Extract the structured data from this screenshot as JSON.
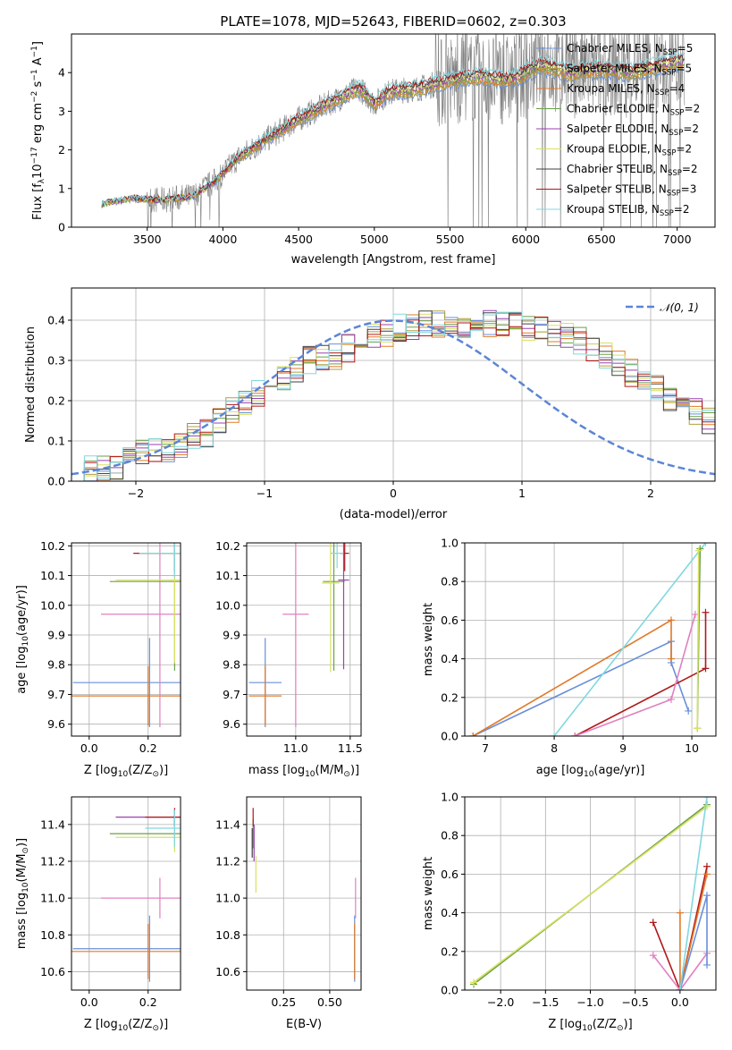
{
  "chart_data": [
    {
      "type": "line",
      "title": "PLATE=1078, MJD=52643, FIBERID=0602, z=0.303",
      "xlabel": "wavelength [Angstrom, rest frame]",
      "ylabel": "Flux [f$_\\lambda$10$^{-17}$ erg cm$^{-2}$ s$^{-1}$ A$^{-1}$]",
      "ylabel_parts": {
        "a": "Flux [f",
        "b": "λ",
        "c": "10",
        "d": "−17",
        "e": " erg cm",
        "f": "−2",
        "g": " s",
        "h": "−1",
        "i": " A",
        "j": "−1",
        "k": "]"
      },
      "xlim": [
        3000,
        7250
      ],
      "ylim": [
        0,
        5
      ],
      "xticks": [
        3500,
        4000,
        4500,
        5000,
        5500,
        6000,
        6500,
        7000
      ],
      "yticks": [
        0,
        1,
        2,
        3,
        4
      ],
      "legend_position": "top-right",
      "model_points": [
        [
          3200,
          0.6
        ],
        [
          3400,
          0.75
        ],
        [
          3600,
          0.7
        ],
        [
          3800,
          0.8
        ],
        [
          3950,
          1.2
        ],
        [
          4100,
          1.8
        ],
        [
          4300,
          2.3
        ],
        [
          4500,
          2.8
        ],
        [
          4700,
          3.2
        ],
        [
          4900,
          3.6
        ],
        [
          5000,
          3.2
        ],
        [
          5100,
          3.5
        ],
        [
          5300,
          3.6
        ],
        [
          5500,
          3.8
        ],
        [
          5700,
          3.9
        ],
        [
          5900,
          3.8
        ],
        [
          6100,
          4.2
        ],
        [
          6300,
          4.0
        ],
        [
          6500,
          4.1
        ],
        [
          6700,
          4.0
        ],
        [
          6900,
          4.2
        ],
        [
          7050,
          4.3
        ]
      ],
      "series": [
        {
          "name": "Chabrier MILES, N",
          "sub": "SSP",
          "suffix": "=5",
          "color": "#6a8fd8"
        },
        {
          "name": "Salpeter MILES, N",
          "sub": "SSP",
          "suffix": "=5",
          "color": "#b0a040"
        },
        {
          "name": "Kroupa MILES, N",
          "sub": "SSP",
          "suffix": "=4",
          "color": "#e07a2a"
        },
        {
          "name": "Chabrier ELODIE, N",
          "sub": "SSP",
          "suffix": "=2",
          "color": "#6aa04a"
        },
        {
          "name": "Salpeter ELODIE, N",
          "sub": "SSP",
          "suffix": "=2",
          "color": "#9a40b0"
        },
        {
          "name": "Kroupa ELODIE, N",
          "sub": "SSP",
          "suffix": "=2",
          "color": "#d8e060"
        },
        {
          "name": "Chabrier STELIB, N",
          "sub": "SSP",
          "suffix": "=2",
          "color": "#404040"
        },
        {
          "name": "Salpeter STELIB, N",
          "sub": "SSP",
          "suffix": "=3",
          "color": "#b01818"
        },
        {
          "name": "Kroupa STELIB, N",
          "sub": "SSP",
          "suffix": "=2",
          "color": "#80d8e0"
        }
      ]
    },
    {
      "type": "line",
      "xlabel": "(data-model)/error",
      "ylabel": "Normed distribution",
      "xlim": [
        -2.5,
        2.5
      ],
      "ylim": [
        0,
        0.48
      ],
      "xticks": [
        -2,
        -1,
        0,
        1,
        2
      ],
      "yticks": [
        0.0,
        0.1,
        0.2,
        0.3,
        0.4
      ],
      "xtick_labels": [
        "−2",
        "−1",
        "0",
        "1",
        "2"
      ],
      "ytick_labels": [
        "0.0",
        "0.1",
        "0.2",
        "0.3",
        "0.4"
      ],
      "grid": true,
      "legend": {
        "label": "𝒩(0, 1)",
        "position": "top-right",
        "color": "#5b85d6"
      },
      "bin_start": -2.5,
      "bin_width": 0.1,
      "hist_base": [
        0.03,
        0.03,
        0.03,
        0.04,
        0.05,
        0.07,
        0.08,
        0.08,
        0.09,
        0.11,
        0.12,
        0.15,
        0.18,
        0.2,
        0.22,
        0.24,
        0.26,
        0.28,
        0.3,
        0.31,
        0.31,
        0.33,
        0.35,
        0.36,
        0.37,
        0.38,
        0.38,
        0.39,
        0.39,
        0.39,
        0.39,
        0.39,
        0.39,
        0.39,
        0.39,
        0.38,
        0.38,
        0.37,
        0.36,
        0.35,
        0.33,
        0.31,
        0.29,
        0.27,
        0.25,
        0.23,
        0.21,
        0.19,
        0.17,
        0.15,
        0.13,
        0.12,
        0.1,
        0.09,
        0.08,
        0.07,
        0.06,
        0.05,
        0.04,
        0.03,
        0.03,
        0.03,
        0.02
      ]
    },
    {
      "type": "scatter",
      "xlabel_main": "Z [log",
      "xlabel_sub": "10",
      "xlabel_rest": "(Z/Z",
      "xlabel_end": ")]",
      "ylabel": "age  [log10(age/yr)]",
      "xlim": [
        -0.06,
        0.31
      ],
      "ylim": [
        9.56,
        10.21
      ],
      "xticks": [
        0.0,
        0.2
      ],
      "yticks": [
        9.6,
        9.7,
        9.8,
        9.9,
        10.0,
        10.1,
        10.2
      ],
      "xtick_labels": [
        "0.0",
        "0.2"
      ],
      "ytick_labels": [
        "9.6",
        "9.7",
        "9.8",
        "9.9",
        "10.0",
        "10.1",
        "10.2"
      ],
      "grid": true,
      "points": [
        {
          "x": 0.205,
          "y": 9.74,
          "xerr": 0.26,
          "yerr": 0.15,
          "color": "#6a8fd8"
        },
        {
          "x": 0.2,
          "y": 9.695,
          "xerr": 0.26,
          "yerr": 0.1,
          "color": "#e07a2a"
        },
        {
          "x": 0.24,
          "y": 9.97,
          "xerr": 0.2,
          "yerr": 0.38,
          "color": "#e080c0"
        },
        {
          "x": 0.29,
          "y": 10.08,
          "xerr": 0.22,
          "yerr": 0.3,
          "color": "#6aa04a"
        },
        {
          "x": 0.29,
          "y": 10.085,
          "xerr": 0.2,
          "yerr": 0.28,
          "color": "#d8e060"
        },
        {
          "x": 0.29,
          "y": 10.175,
          "xerr": 0.14,
          "yerr": 0.06,
          "color": "#b01818"
        },
        {
          "x": 0.29,
          "y": 10.175,
          "xerr": 0.12,
          "yerr": 0.08,
          "color": "#80d8e0"
        }
      ]
    },
    {
      "type": "scatter",
      "xlabel": "mass [log10(M/M⊙)]",
      "ylabel": "",
      "xlim": [
        10.55,
        11.6
      ],
      "ylim": [
        9.56,
        10.21
      ],
      "xticks": [
        10.5,
        11.0,
        11.5
      ],
      "yticks": [
        9.6,
        9.7,
        9.8,
        9.9,
        10.0,
        10.1,
        10.2
      ],
      "xtick_labels": [
        "10.5",
        "11.0",
        "11.5"
      ],
      "ytick_labels": [
        "9.6",
        "9.7",
        "9.8",
        "9.9",
        "10.0",
        "10.1",
        "10.2"
      ],
      "grid": true,
      "points": [
        {
          "x": 10.72,
          "y": 9.74,
          "xerr": 0.15,
          "yerr": 0.15,
          "color": "#6a8fd8"
        },
        {
          "x": 10.72,
          "y": 9.695,
          "xerr": 0.15,
          "yerr": 0.1,
          "color": "#e07a2a"
        },
        {
          "x": 11.0,
          "y": 9.97,
          "xerr": 0.12,
          "yerr": 0.38,
          "color": "#e080c0"
        },
        {
          "x": 11.35,
          "y": 10.08,
          "xerr": 0.1,
          "yerr": 0.3,
          "color": "#6aa04a"
        },
        {
          "x": 11.32,
          "y": 10.075,
          "xerr": 0.08,
          "yerr": 0.3,
          "color": "#d8e060"
        },
        {
          "x": 11.44,
          "y": 10.085,
          "xerr": 0.05,
          "yerr": 0.3,
          "color": "#9a40b0"
        },
        {
          "x": 11.45,
          "y": 10.175,
          "xerr": 0.04,
          "yerr": 0.06,
          "color": "#b01818"
        },
        {
          "x": 11.38,
          "y": 10.175,
          "xerr": 0.06,
          "yerr": 0.05,
          "color": "#80d8e0"
        }
      ]
    },
    {
      "type": "line",
      "xlabel": "age  [log10(age/yr)]",
      "ylabel": "mass weight",
      "xlim": [
        6.7,
        10.35
      ],
      "ylim": [
        0,
        1.0
      ],
      "xticks": [
        7,
        8,
        9,
        10
      ],
      "yticks": [
        0.0,
        0.2,
        0.4,
        0.6,
        0.8,
        1.0
      ],
      "xtick_labels": [
        "7",
        "8",
        "9",
        "10"
      ],
      "ytick_labels": [
        "0.0",
        "0.2",
        "0.4",
        "0.6",
        "0.8",
        "1.0"
      ],
      "grid": true,
      "lines": [
        {
          "color": "#6a8fd8",
          "pts": [
            [
              6.82,
              0.0
            ],
            [
              9.7,
              0.49
            ],
            [
              9.7,
              0.38
            ],
            [
              9.95,
              0.13
            ]
          ]
        },
        {
          "color": "#e07a2a",
          "pts": [
            [
              6.82,
              0.0
            ],
            [
              9.7,
              0.6
            ],
            [
              9.7,
              0.4
            ]
          ]
        },
        {
          "color": "#b01818",
          "pts": [
            [
              8.3,
              0.0
            ],
            [
              10.2,
              0.35
            ],
            [
              10.2,
              0.64
            ]
          ]
        },
        {
          "color": "#e080c0",
          "pts": [
            [
              8.3,
              0.0
            ],
            [
              9.7,
              0.19
            ],
            [
              10.05,
              0.63
            ]
          ]
        },
        {
          "color": "#80d8e0",
          "pts": [
            [
              8.0,
              0.0
            ],
            [
              10.2,
              1.0
            ]
          ]
        },
        {
          "color": "#6aa04a",
          "pts": [
            [
              10.08,
              0.04
            ],
            [
              10.12,
              0.97
            ]
          ]
        },
        {
          "color": "#d8e060",
          "pts": [
            [
              10.08,
              0.04
            ],
            [
              10.1,
              0.96
            ]
          ]
        }
      ]
    },
    {
      "type": "scatter",
      "xlabel": "Z [log10(Z/Z⊙)]",
      "ylabel": "mass [log10(M/M⊙)]",
      "xlim": [
        -0.06,
        0.31
      ],
      "ylim": [
        10.5,
        11.55
      ],
      "xticks": [
        0.0,
        0.2
      ],
      "yticks": [
        10.6,
        10.8,
        11.0,
        11.2,
        11.4
      ],
      "xtick_labels": [
        "0.0",
        "0.2"
      ],
      "ytick_labels": [
        "10.6",
        "10.8",
        "11.0",
        "11.2",
        "11.4"
      ],
      "grid": true,
      "points": [
        {
          "x": 0.205,
          "y": 10.725,
          "xerr": 0.26,
          "yerr": 0.18,
          "color": "#6a8fd8"
        },
        {
          "x": 0.2,
          "y": 10.71,
          "xerr": 0.26,
          "yerr": 0.15,
          "color": "#e07a2a"
        },
        {
          "x": 0.24,
          "y": 11.0,
          "xerr": 0.2,
          "yerr": 0.11,
          "color": "#e080c0"
        },
        {
          "x": 0.29,
          "y": 11.35,
          "xerr": 0.22,
          "yerr": 0.08,
          "color": "#6aa04a"
        },
        {
          "x": 0.29,
          "y": 11.33,
          "xerr": 0.2,
          "yerr": 0.08,
          "color": "#d8e060"
        },
        {
          "x": 0.29,
          "y": 11.44,
          "xerr": 0.2,
          "yerr": 0.04,
          "color": "#9a40b0"
        },
        {
          "x": 0.29,
          "y": 11.44,
          "xerr": 0.1,
          "yerr": 0.05,
          "color": "#b01818"
        },
        {
          "x": 0.29,
          "y": 11.38,
          "xerr": 0.1,
          "yerr": 0.1,
          "color": "#80d8e0"
        }
      ]
    },
    {
      "type": "scatter",
      "xlabel": "E(B-V)",
      "ylabel": "",
      "xlim": [
        0.05,
        0.67
      ],
      "ylim": [
        10.5,
        11.55
      ],
      "xticks": [
        0.25,
        0.5
      ],
      "yticks": [
        10.6,
        10.8,
        11.0,
        11.2,
        11.4
      ],
      "xtick_labels": [
        "0.25",
        "0.50"
      ],
      "ytick_labels": [
        "10.6",
        "10.8",
        "11.0",
        "11.2",
        "11.4"
      ],
      "grid": true,
      "points": [
        {
          "x": 0.635,
          "y": 10.725,
          "xerr": 0,
          "yerr": 0.18,
          "color": "#6a8fd8"
        },
        {
          "x": 0.635,
          "y": 10.71,
          "xerr": 0,
          "yerr": 0.15,
          "color": "#e07a2a"
        },
        {
          "x": 0.64,
          "y": 11.0,
          "xerr": 0,
          "yerr": 0.11,
          "color": "#e080c0"
        },
        {
          "x": 0.085,
          "y": 11.35,
          "xerr": 0,
          "yerr": 0.08,
          "color": "#6aa04a"
        },
        {
          "x": 0.1,
          "y": 11.13,
          "xerr": 0,
          "yerr": 0.1,
          "color": "#d8e060"
        },
        {
          "x": 0.09,
          "y": 11.3,
          "xerr": 0,
          "yerr": 0.1,
          "color": "#9a40b0"
        },
        {
          "x": 0.085,
          "y": 11.44,
          "xerr": 0,
          "yerr": 0.05,
          "color": "#b01818"
        },
        {
          "x": 0.08,
          "y": 11.3,
          "xerr": 0,
          "yerr": 0.08,
          "color": "#404040"
        }
      ]
    },
    {
      "type": "line",
      "xlabel": "Z [log10(Z/Z⊙)]",
      "ylabel": "mass weight",
      "xlim": [
        -2.4,
        0.4
      ],
      "ylim": [
        0,
        1.0
      ],
      "xticks": [
        -2.0,
        -1.5,
        -1.0,
        -0.5,
        0.0
      ],
      "yticks": [
        0.0,
        0.2,
        0.4,
        0.6,
        0.8,
        1.0
      ],
      "xtick_labels": [
        "−2.0",
        "−1.5",
        "−1.0",
        "−0.5",
        "0.0"
      ],
      "ytick_labels": [
        "0.0",
        "0.2",
        "0.4",
        "0.6",
        "0.8",
        "1.0"
      ],
      "grid": true,
      "lines": [
        {
          "color": "#6aa04a",
          "pts": [
            [
              -2.3,
              0.03
            ],
            [
              0.3,
              0.96
            ]
          ]
        },
        {
          "color": "#d8e060",
          "pts": [
            [
              -2.3,
              0.04
            ],
            [
              0.3,
              0.95
            ]
          ]
        },
        {
          "color": "#b01818",
          "pts": [
            [
              -0.3,
              0.35
            ],
            [
              0.0,
              0.0
            ],
            [
              0.3,
              0.64
            ]
          ]
        },
        {
          "color": "#e080c0",
          "pts": [
            [
              -0.3,
              0.18
            ],
            [
              0.0,
              0.0
            ],
            [
              0.3,
              0.19
            ]
          ]
        },
        {
          "color": "#e07a2a",
          "pts": [
            [
              0.0,
              0.4
            ],
            [
              0.0,
              0.0
            ],
            [
              0.3,
              0.6
            ]
          ]
        },
        {
          "color": "#6a8fd8",
          "pts": [
            [
              0.0,
              0.0
            ],
            [
              0.3,
              0.49
            ],
            [
              0.3,
              0.13
            ]
          ]
        },
        {
          "color": "#80d8e0",
          "pts": [
            [
              0.0,
              0.0
            ],
            [
              0.3,
              1.0
            ]
          ]
        }
      ]
    }
  ]
}
